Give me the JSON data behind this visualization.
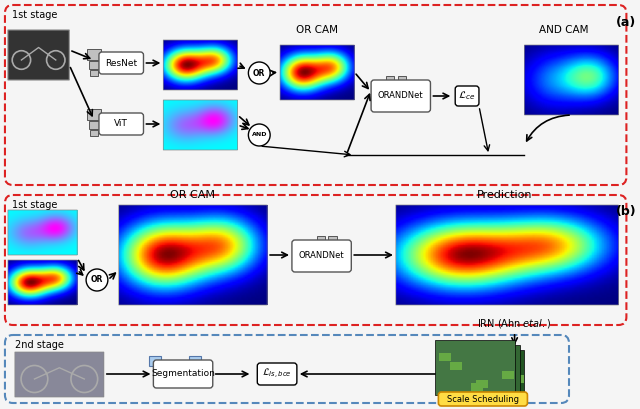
{
  "title_a": "(a)",
  "title_b": "(b)",
  "bg_color": "#f5f5f5",
  "red_dashed_color": "#ee1111",
  "blue_dashed_color": "#6699cc",
  "gray_box_color": "#b0b0b0",
  "light_blue_box_color": "#aaccee",
  "white_box_color": "#ffffff",
  "arrow_color": "#111111",
  "text_resnet": "ResNet",
  "text_vit": "ViT",
  "text_orcam_a": "OR CAM",
  "text_andcam": "AND CAM",
  "text_orandnet": "ORANDNet",
  "text_lce": "$\\mathcal{L}_{ce}$",
  "text_or": "OR",
  "text_and": "AND",
  "text_1st_stage": "1st stage",
  "text_1st_stage_b": "1st stage",
  "text_2nd_stage": "2nd stage",
  "text_orcam_b": "OR CAM",
  "text_prediction": "Prediction",
  "text_orandnet_b": "ORANDNet",
  "text_irn": "IRN (Ahn $\\it{et al.}$)",
  "text_segmentation": "Segmentation",
  "text_lls": "$\\mathcal{L}_{ls, bce}$",
  "text_scale": "Scale Scheduling"
}
